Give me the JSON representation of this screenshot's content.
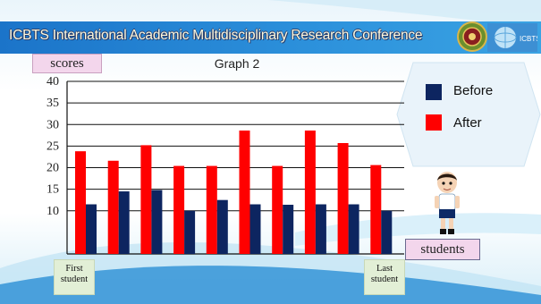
{
  "banner": {
    "title": "ICBTS International Academic Multidisciplinary Research Conference"
  },
  "chart_data": {
    "type": "bar",
    "title": "Graph 2",
    "ylabel": "scores",
    "xlabel": "students",
    "first_label": "First student",
    "last_label": "Last student",
    "yticks": [
      10,
      15,
      20,
      25,
      30,
      35,
      40
    ],
    "ylim": [
      0,
      40
    ],
    "series": [
      {
        "name": "Before",
        "color": "#0d2560",
        "values": [
          11.5,
          14.5,
          14.8,
          10,
          12.5,
          11.5,
          11.4,
          11.5,
          11.5,
          10
        ]
      },
      {
        "name": "After",
        "color": "#ff0000",
        "values": [
          23.8,
          21.6,
          25.2,
          20.4,
          20.4,
          28.6,
          20.4,
          28.6,
          25.7,
          20.6
        ]
      }
    ]
  },
  "legend": {
    "before": "Before",
    "after": "After"
  },
  "icons": {
    "seal": "university-seal-icon",
    "logo": "icbts-globe-logo",
    "character": "student-cartoon"
  }
}
